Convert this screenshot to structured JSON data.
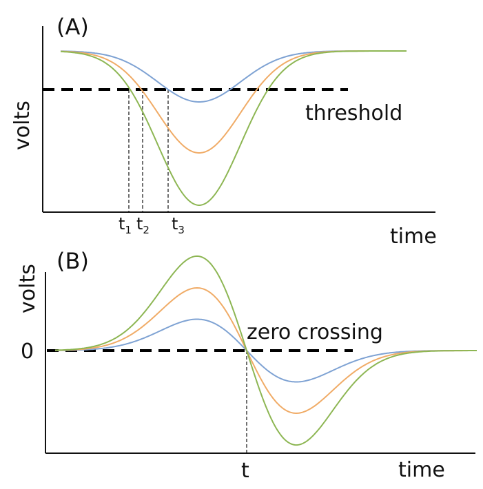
{
  "panel_a": {
    "label": "(A)",
    "y_axis_label": "volts",
    "x_axis_label": "time",
    "threshold_label": "threshold",
    "time_labels": [
      {
        "base": "t",
        "sub": "1"
      },
      {
        "base": "t",
        "sub": "2"
      },
      {
        "base": "t",
        "sub": "3"
      }
    ]
  },
  "panel_b": {
    "label": "(B)",
    "y_axis_label": "volts",
    "x_axis_label": "time",
    "zero_label": "0",
    "zero_crossing_label": "zero crossing",
    "crossing_time_label": "t"
  },
  "colors": {
    "blue": "#7ea2d3",
    "orange": "#f0ab66",
    "green": "#8db653",
    "ink": "#111111"
  }
}
